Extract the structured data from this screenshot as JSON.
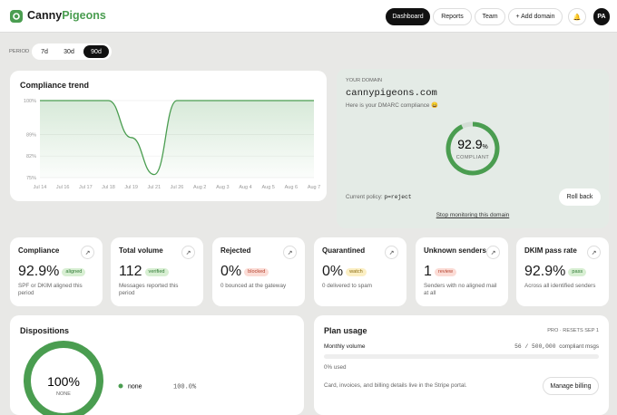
{
  "header": {
    "brand_a": "Canny",
    "brand_b": "Pigeons",
    "nav": [
      "Dashboard",
      "Reports",
      "Team",
      "+ Add domain"
    ],
    "active_nav": 0,
    "avatar": "PA"
  },
  "period": {
    "label": "PERIOD",
    "options": [
      "7d",
      "30d",
      "90d"
    ],
    "active": 2
  },
  "trend": {
    "title": "Compliance trend",
    "categories": [
      "Jul 14",
      "Jul 16",
      "Jul 17",
      "Jul 18",
      "Jul 19",
      "Jul 21",
      "Jul 26",
      "Aug 2",
      "Aug 3",
      "Aug 4",
      "Aug 5",
      "Aug 6",
      "Aug 7"
    ],
    "values": [
      100,
      100,
      100,
      100,
      88,
      76,
      100,
      100,
      100,
      100,
      100,
      100,
      100
    ],
    "ylim": [
      75,
      100
    ],
    "yticks": [
      {
        "value": 100,
        "label": "100%"
      },
      {
        "value": 89,
        "label": "89%"
      },
      {
        "value": 82,
        "label": "82%"
      },
      {
        "value": 75,
        "label": "75%"
      }
    ],
    "color": "#4a9d50",
    "grid": true
  },
  "domain": {
    "label": "YOUR DOMAIN",
    "name": "cannypigeons.com",
    "subtitle": "Here is your DMARC compliance 😄",
    "score": 92.9,
    "score_unit": "%",
    "score_label": "COMPLIANT",
    "policy_label": "Current policy:",
    "policy": "p=reject",
    "button": "Roll back",
    "link": "Stop monitoring this domain",
    "color": "#4a9d50"
  },
  "stats": [
    {
      "title": "Compliance",
      "value": "92.9%",
      "badge": "aligned",
      "badge_color": "green",
      "note": "SPF or DKIM aligned this period"
    },
    {
      "title": "Total volume",
      "value": "112",
      "badge": "verified",
      "badge_color": "green",
      "note": "Messages reported this period"
    },
    {
      "title": "Rejected",
      "value": "0%",
      "badge": "blocked",
      "badge_color": "red",
      "note": "0 bounced at the gateway"
    },
    {
      "title": "Quarantined",
      "value": "0%",
      "badge": "watch",
      "badge_color": "yellow",
      "note": "0 delivered to spam"
    },
    {
      "title": "Unknown senders",
      "value": "1",
      "badge": "review",
      "badge_color": "red",
      "note": "Senders with no aligned mail at all"
    },
    {
      "title": "DKIM pass rate",
      "value": "92.9%",
      "badge": "pass",
      "badge_color": "green",
      "note": "Across all identified senders"
    }
  ],
  "dispositions": {
    "title": "Dispositions",
    "center_value": "100%",
    "center_label": "NONE",
    "items": [
      {
        "name": "none",
        "value": 100,
        "value_label": "100.0%",
        "color": "#4a9d50"
      }
    ]
  },
  "plan": {
    "title": "Plan usage",
    "tier": "PRO · RESETS SEP 1",
    "metric": "Monthly volume",
    "used": 56,
    "separator": "/",
    "quota": {
      "value": 500000,
      "label": "500,000"
    },
    "unit": "compliant msgs",
    "used_label": "0% used",
    "note": "Card, invoices, and billing details live in the Stripe portal.",
    "button": "Manage billing"
  }
}
